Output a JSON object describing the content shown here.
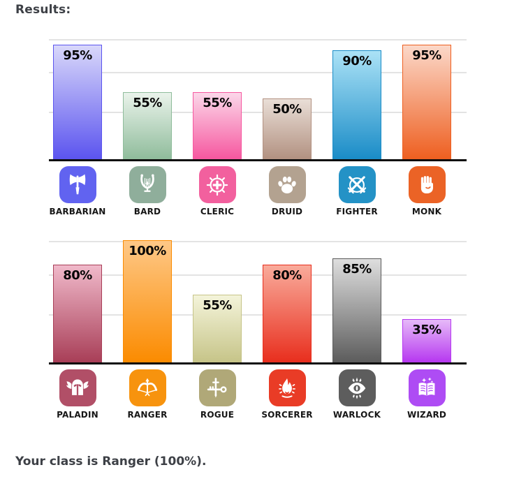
{
  "heading": "Results:",
  "result_text": "Your class is Ranger (100%).",
  "colors": {
    "heading_text": "#3d4046",
    "class_label": "#161616",
    "value_label": "#050505",
    "gridline": "#e3e3e3",
    "baseline": "#0c0c0c",
    "background": "#ffffff"
  },
  "chart_data": {
    "type": "bar",
    "unit": "%",
    "ylim": [
      0,
      100
    ],
    "grid": true,
    "gridlines_pct_from_top": [
      0,
      27.5,
      60.5
    ],
    "value_labels_position": "inside-top",
    "rows": [
      {
        "items": [
          {
            "label": "BARBARIAN",
            "value": 95,
            "icon": "axe",
            "tile": "#6163f0",
            "bar_top": "#d9d8fa",
            "bar_bottom": "#5b54ef"
          },
          {
            "label": "BARD",
            "value": 55,
            "icon": "lyre",
            "tile": "#8fae9b",
            "bar_top": "#eaf3eb",
            "bar_bottom": "#8fbc9b"
          },
          {
            "label": "CLERIC",
            "value": 55,
            "icon": "holy-cross",
            "tile": "#f2609e",
            "bar_top": "#fbd7e9",
            "bar_bottom": "#f6579f"
          },
          {
            "label": "DRUID",
            "value": 50,
            "icon": "paw",
            "tile": "#b3a290",
            "bar_top": "#e9ded7",
            "bar_bottom": "#b29181"
          },
          {
            "label": "FIGHTER",
            "value": 90,
            "icon": "crossed-swords",
            "tile": "#2492c6",
            "bar_top": "#abe2f6",
            "bar_bottom": "#1a8cc7"
          },
          {
            "label": "MONK",
            "value": 95,
            "icon": "fist",
            "tile": "#eb6326",
            "bar_top": "#fbd8c9",
            "bar_bottom": "#ee5f20"
          }
        ]
      },
      {
        "items": [
          {
            "label": "PALADIN",
            "value": 80,
            "icon": "winged-helmet",
            "tile": "#b14f67",
            "bar_top": "#f0b9ca",
            "bar_bottom": "#a83e57"
          },
          {
            "label": "RANGER",
            "value": 100,
            "icon": "bow-arrow",
            "tile": "#f7930e",
            "bar_top": "#fec887",
            "bar_bottom": "#fb8b00"
          },
          {
            "label": "ROGUE",
            "value": 55,
            "icon": "key-dagger",
            "tile": "#b0a878",
            "bar_top": "#f4f4da",
            "bar_bottom": "#c6c488"
          },
          {
            "label": "SORCERER",
            "value": 80,
            "icon": "flame",
            "tile": "#e93c26",
            "bar_top": "#f9ab9b",
            "bar_bottom": "#e82e1d"
          },
          {
            "label": "WARLOCK",
            "value": 85,
            "icon": "eye",
            "tile": "#5d5d5d",
            "bar_top": "#dedede",
            "bar_bottom": "#5c5c5c"
          },
          {
            "label": "WIZARD",
            "value": 35,
            "icon": "spellbook",
            "tile": "#ae4cf4",
            "bar_top": "#e6baf8",
            "bar_bottom": "#b637f0"
          }
        ]
      }
    ]
  }
}
